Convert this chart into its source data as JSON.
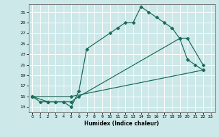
{
  "title": "",
  "xlabel": "Humidex (Indice chaleur)",
  "bg_color": "#cce8e8",
  "grid_color": "#ffffff",
  "line_color": "#1a6b5a",
  "xlim": [
    -0.5,
    23.5
  ],
  "ylim": [
    12.0,
    32.5
  ],
  "xticks": [
    0,
    1,
    2,
    3,
    4,
    5,
    6,
    7,
    8,
    9,
    10,
    11,
    12,
    13,
    14,
    15,
    16,
    17,
    18,
    19,
    20,
    21,
    22,
    23
  ],
  "yticks": [
    13,
    15,
    17,
    19,
    21,
    23,
    25,
    27,
    29,
    31
  ],
  "line1_x": [
    0,
    1,
    2,
    3,
    4,
    5,
    6,
    7,
    10,
    11,
    12,
    13,
    14,
    15,
    16,
    17,
    18,
    19,
    20,
    21,
    22
  ],
  "line1_y": [
    15,
    14,
    14,
    14,
    14,
    13,
    16,
    24,
    27,
    28,
    29,
    29,
    32,
    31,
    30,
    29,
    28,
    26,
    22,
    21,
    20
  ],
  "line2_x": [
    0,
    2,
    3,
    4,
    5,
    6,
    19,
    20,
    22
  ],
  "line2_y": [
    15,
    14,
    14,
    14,
    14,
    15,
    26,
    26,
    21
  ],
  "line3_x": [
    0,
    5,
    22
  ],
  "line3_y": [
    15,
    15,
    20
  ]
}
